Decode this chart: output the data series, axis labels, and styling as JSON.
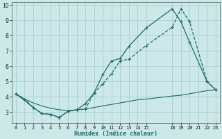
{
  "xlabel": "Humidex (Indice chaleur)",
  "bg_color": "#cce8e8",
  "grid_color": "#aacece",
  "line_color": "#1a6b6b",
  "series": [
    {
      "x": [
        0,
        1,
        2,
        3,
        4,
        5,
        6,
        7,
        8,
        9,
        10,
        11,
        12,
        13,
        14,
        15,
        18,
        19,
        20,
        21,
        22,
        23
      ],
      "y": [
        4.2,
        3.85,
        3.6,
        3.4,
        3.25,
        3.15,
        3.1,
        3.15,
        3.2,
        3.3,
        3.4,
        3.5,
        3.6,
        3.7,
        3.8,
        3.85,
        4.05,
        4.1,
        4.2,
        4.3,
        4.4,
        4.45
      ],
      "marker": "None",
      "linestyle": "-",
      "linewidth": 0.8
    },
    {
      "x": [
        0,
        1,
        2,
        3,
        4,
        5,
        6,
        7,
        8,
        9,
        10,
        11,
        12,
        13,
        15,
        18,
        19,
        20,
        22,
        23
      ],
      "y": [
        4.2,
        3.85,
        3.3,
        2.9,
        2.85,
        2.65,
        3.05,
        3.15,
        3.2,
        4.25,
        4.85,
        5.5,
        6.35,
        6.45,
        7.35,
        8.55,
        9.75,
        8.9,
        5.0,
        4.45
      ],
      "marker": "+",
      "linestyle": "--",
      "linewidth": 0.9
    },
    {
      "x": [
        0,
        2,
        3,
        4,
        5,
        6,
        7,
        8,
        9,
        10,
        11,
        12,
        13,
        15,
        18,
        19,
        20,
        22,
        23
      ],
      "y": [
        4.2,
        3.3,
        2.9,
        2.85,
        2.65,
        3.05,
        3.15,
        3.55,
        4.25,
        5.45,
        6.35,
        6.5,
        7.3,
        8.5,
        9.75,
        8.9,
        7.55,
        5.0,
        4.45
      ],
      "marker": "+",
      "linestyle": "-",
      "linewidth": 0.9
    }
  ],
  "xlim": [
    -0.5,
    23.5
  ],
  "ylim": [
    2.3,
    10.2
  ],
  "yticks": [
    3,
    4,
    5,
    6,
    7,
    8,
    9,
    10
  ],
  "xticks": [
    0,
    1,
    2,
    3,
    4,
    5,
    6,
    7,
    8,
    9,
    10,
    11,
    12,
    13,
    14,
    15,
    18,
    19,
    20,
    21,
    22,
    23
  ]
}
